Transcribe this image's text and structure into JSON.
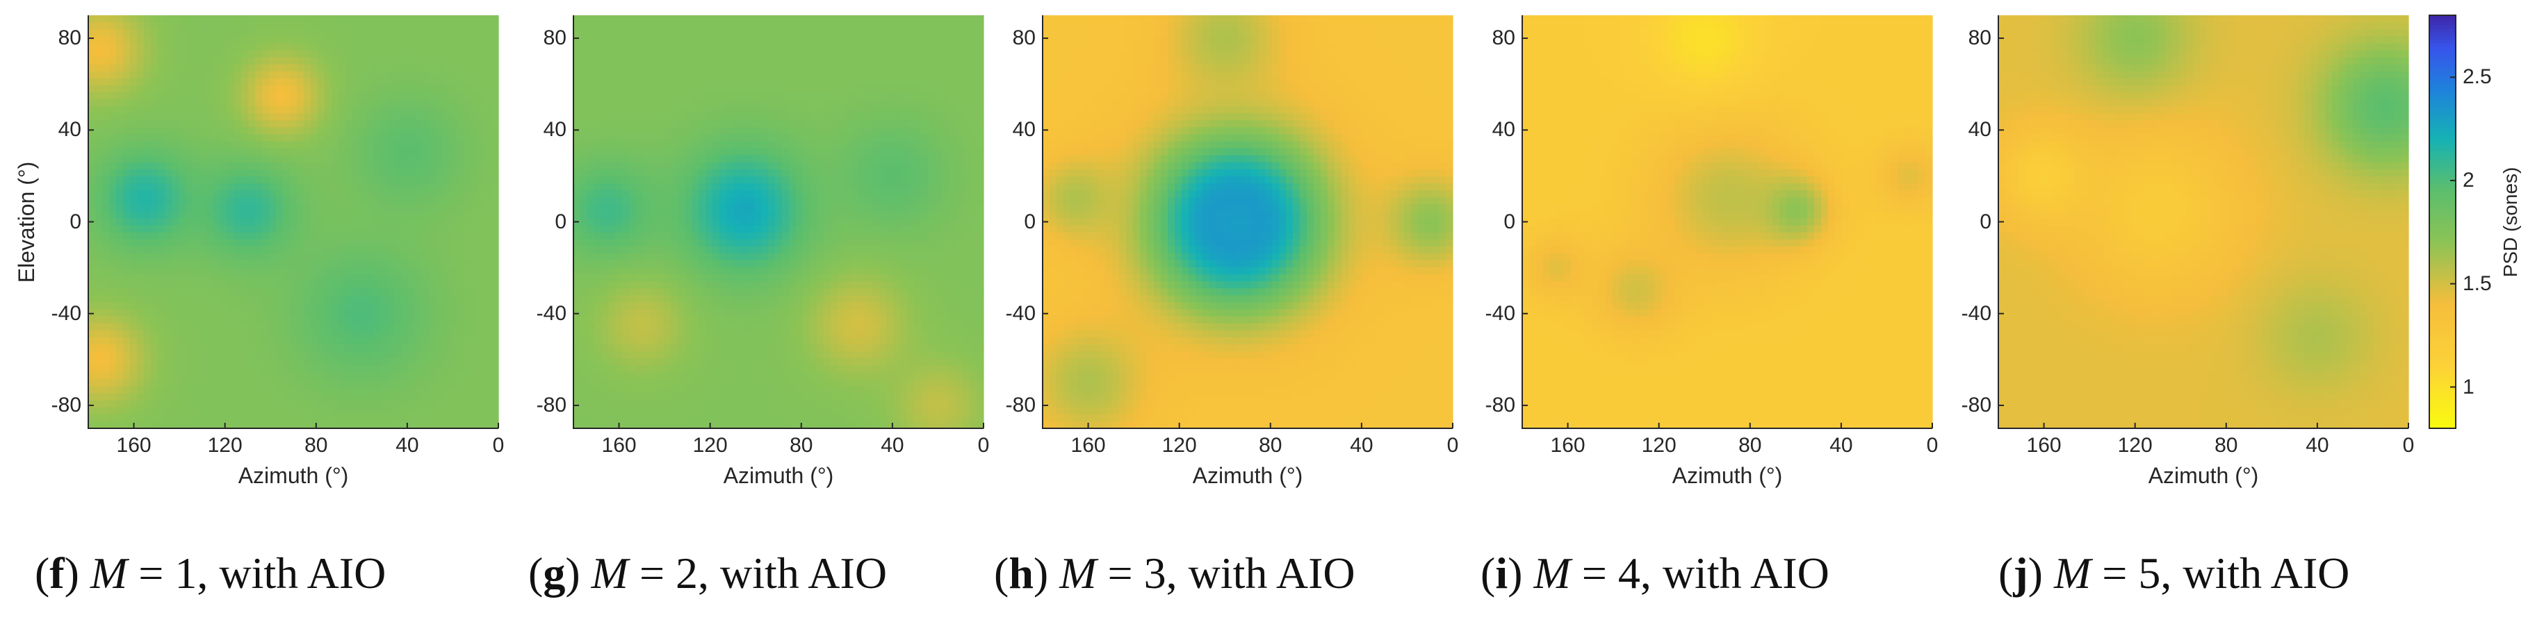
{
  "chart_data": {
    "type": "heatmap",
    "colormap": "parula (reversed)",
    "colors": {
      "low": "#f9fb0e",
      "mid_low": "#fbbd3a",
      "mid": "#7fc45a",
      "mid_high": "#19b2b6",
      "high": "#3060f0",
      "max": "#3e26a8"
    },
    "colorbar": {
      "label": "PSD (sones)",
      "range": [
        0.8,
        2.8
      ],
      "ticks": [
        "1",
        "1.5",
        "2",
        "2.5"
      ],
      "tick_values": [
        1,
        1.5,
        2,
        2.5
      ]
    },
    "x_axis": {
      "label": "Azimuth (°)",
      "range": [
        180,
        0
      ],
      "ticks": [
        "160",
        "120",
        "80",
        "40",
        "0"
      ],
      "tick_values": [
        160,
        120,
        80,
        40,
        0
      ]
    },
    "y_axis": {
      "label": "Elevation (°)",
      "range": [
        -90,
        90
      ],
      "ticks": [
        "80",
        "40",
        "0",
        "-40",
        "-80"
      ],
      "tick_values": [
        80,
        40,
        0,
        -40,
        -80
      ]
    },
    "panels": [
      {
        "id": "f",
        "caption_letter": "f",
        "caption_text": "= 1, with AIO",
        "M": "M",
        "show_ylabel": true,
        "base_psd": 1.75,
        "blobs": [
          {
            "az": 155,
            "el": 10,
            "psd": 2.15,
            "r": 22
          },
          {
            "az": 110,
            "el": 5,
            "psd": 2.1,
            "r": 22
          },
          {
            "az": 60,
            "el": -40,
            "psd": 2.0,
            "r": 30
          },
          {
            "az": 40,
            "el": 30,
            "psd": 1.95,
            "r": 25
          },
          {
            "az": 175,
            "el": 75,
            "psd": 1.4,
            "r": 20
          },
          {
            "az": 175,
            "el": -60,
            "psd": 1.4,
            "r": 20
          },
          {
            "az": 95,
            "el": 55,
            "psd": 1.4,
            "r": 18
          }
        ]
      },
      {
        "id": "g",
        "caption_letter": "g",
        "caption_text": "= 2, with AIO",
        "M": "M",
        "show_ylabel": false,
        "base_psd": 1.75,
        "blobs": [
          {
            "az": 105,
            "el": 5,
            "psd": 2.25,
            "r": 28
          },
          {
            "az": 165,
            "el": 5,
            "psd": 2.05,
            "r": 22
          },
          {
            "az": 40,
            "el": 20,
            "psd": 1.95,
            "r": 25
          },
          {
            "az": 55,
            "el": -45,
            "psd": 1.5,
            "r": 22
          },
          {
            "az": 150,
            "el": -45,
            "psd": 1.55,
            "r": 20
          },
          {
            "az": 20,
            "el": -80,
            "psd": 1.55,
            "r": 20
          }
        ]
      },
      {
        "id": "h",
        "caption_letter": "h",
        "caption_text": "= 3, with AIO",
        "M": "M",
        "show_ylabel": false,
        "base_psd": 1.3,
        "blobs": [
          {
            "az": 95,
            "el": 0,
            "psd": 2.75,
            "r": 25
          },
          {
            "az": 95,
            "el": 0,
            "psd": 2.3,
            "r": 40
          },
          {
            "az": 165,
            "el": 10,
            "psd": 1.6,
            "r": 18
          },
          {
            "az": 10,
            "el": 0,
            "psd": 1.7,
            "r": 20
          },
          {
            "az": 100,
            "el": 80,
            "psd": 1.6,
            "r": 25
          },
          {
            "az": 160,
            "el": -70,
            "psd": 1.6,
            "r": 25
          }
        ]
      },
      {
        "id": "i",
        "caption_letter": "i",
        "caption_text": "= 4, with AIO",
        "M": "M",
        "show_ylabel": false,
        "base_psd": 1.2,
        "blobs": [
          {
            "az": 90,
            "el": 10,
            "psd": 1.55,
            "r": 35
          },
          {
            "az": 60,
            "el": 5,
            "psd": 1.7,
            "r": 15
          },
          {
            "az": 130,
            "el": -30,
            "psd": 1.5,
            "r": 20
          },
          {
            "az": 165,
            "el": -20,
            "psd": 1.45,
            "r": 15
          },
          {
            "az": 10,
            "el": 20,
            "psd": 1.45,
            "r": 15
          },
          {
            "az": 100,
            "el": 80,
            "psd": 1.0,
            "r": 25
          }
        ]
      },
      {
        "id": "j",
        "caption_letter": "j",
        "caption_text": "= 5, with AIO",
        "M": "M",
        "show_ylabel": false,
        "base_psd": 1.45,
        "blobs": [
          {
            "az": 10,
            "el": 50,
            "psd": 1.95,
            "r": 28
          },
          {
            "az": 110,
            "el": 5,
            "psd": 1.2,
            "r": 35
          },
          {
            "az": 160,
            "el": 20,
            "psd": 1.15,
            "r": 20
          },
          {
            "az": 40,
            "el": -50,
            "psd": 1.6,
            "r": 25
          },
          {
            "az": 120,
            "el": 80,
            "psd": 1.7,
            "r": 25
          }
        ]
      }
    ]
  }
}
